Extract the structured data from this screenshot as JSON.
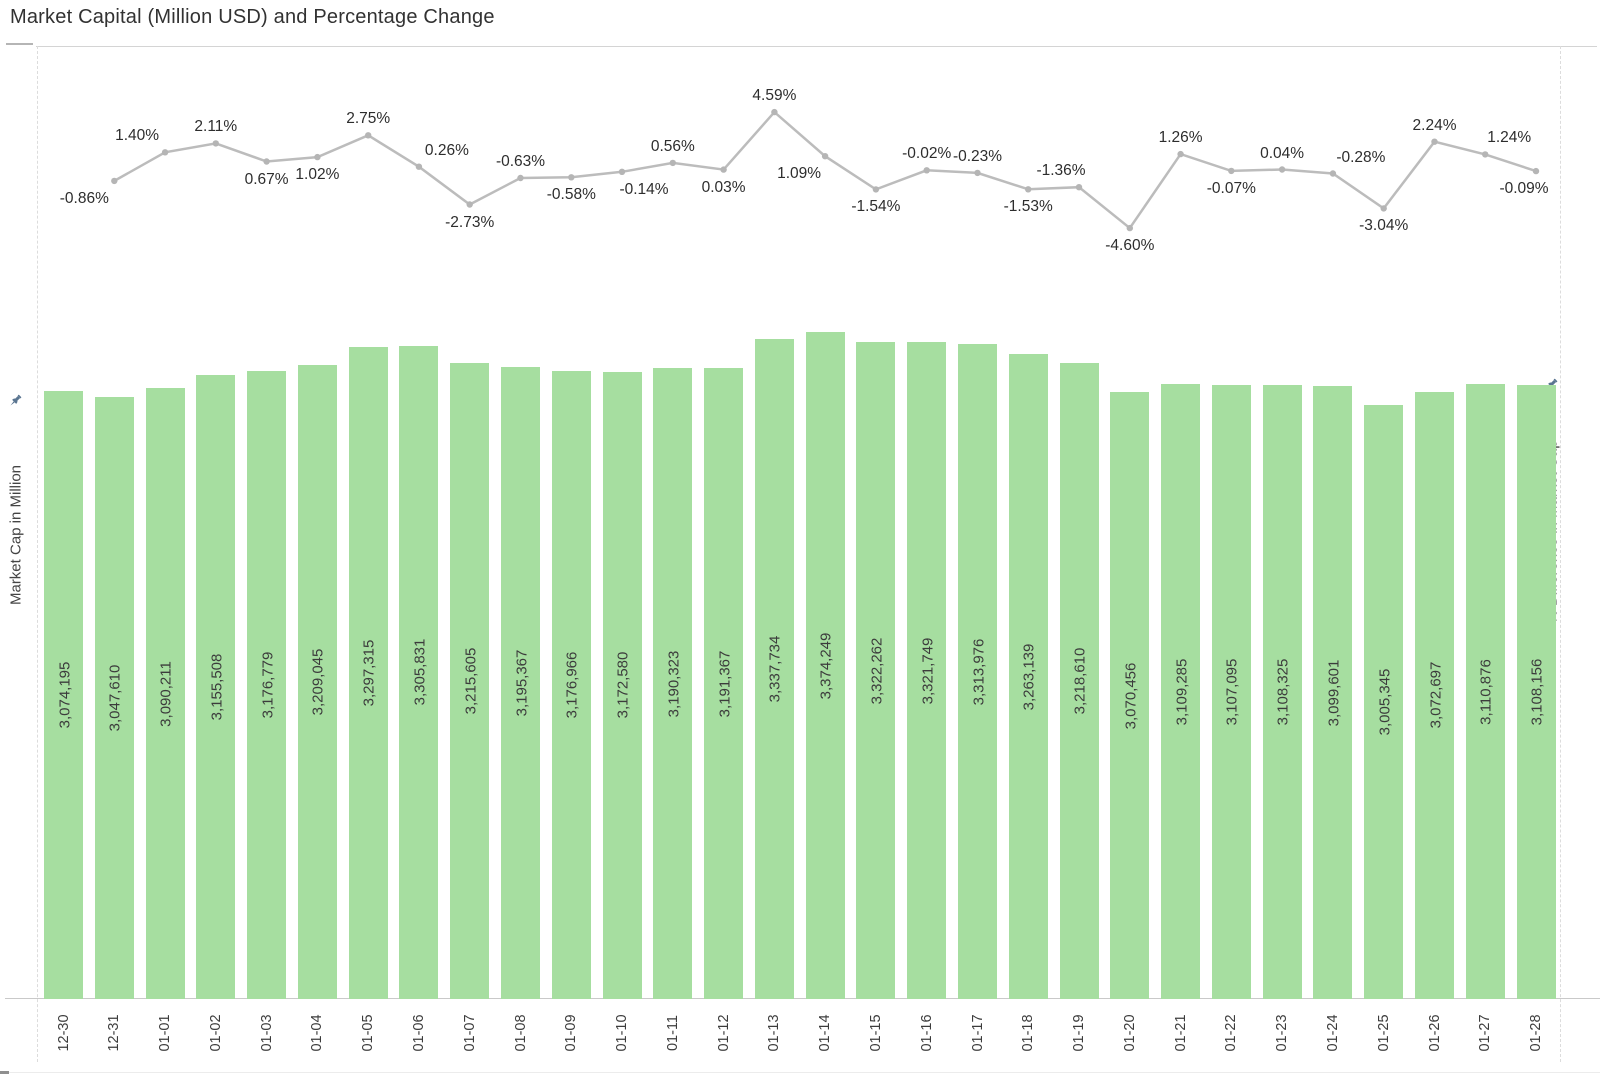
{
  "title": "Market Capital (Million USD) and Percentage Change",
  "axes": {
    "left": {
      "label": "Market Cap in Million",
      "icon": "pushpin-icon"
    },
    "right": {
      "label": "% Difference in Market Cap",
      "icon": "pushpin-icon"
    }
  },
  "colors": {
    "bar_fill": "#a6dea0",
    "line": "#bcbcbc",
    "marker": "#b5b5b5",
    "pin": "#5a7591",
    "label_text": "#3c3c3c",
    "pct_text": "#2d2d2d",
    "axis_line": "#c9c9c9"
  },
  "chart_data": {
    "type": "combo",
    "title": "Market Capital (Million USD) and Percentage Change",
    "grid": "off",
    "legend": "none",
    "categories": [
      "12-30",
      "12-31",
      "01-01",
      "01-02",
      "01-03",
      "01-04",
      "01-05",
      "01-06",
      "01-07",
      "01-08",
      "01-09",
      "01-10",
      "01-11",
      "01-12",
      "01-13",
      "01-14",
      "01-15",
      "01-16",
      "01-17",
      "01-18",
      "01-19",
      "01-20",
      "01-21",
      "01-22",
      "01-23",
      "01-24",
      "01-25",
      "01-26",
      "01-27",
      "01-28"
    ],
    "bar_series": {
      "name": "Market Cap in Million",
      "type": "bar",
      "color": "#a6dea0",
      "axis_range": [
        0,
        3400000
      ],
      "values": [
        3074195,
        3047610,
        3090211,
        3155508,
        3176779,
        3209045,
        3297315,
        3305831,
        3215605,
        3195367,
        3176966,
        3172580,
        3190323,
        3191367,
        3337734,
        3374249,
        3322262,
        3321749,
        3313976,
        3263139,
        3218610,
        3070456,
        3109285,
        3107095,
        3108325,
        3099601,
        3005345,
        3072697,
        3110876,
        3108156
      ],
      "labels": [
        "3,074,195",
        "3,047,610",
        "3,090,211",
        "3,155,508",
        "3,176,779",
        "3,209,045",
        "3,297,315",
        "3,305,831",
        "3,215,605",
        "3,195,367",
        "3,176,966",
        "3,172,580",
        "3,190,323",
        "3,191,367",
        "3,337,734",
        "3,374,249",
        "3,322,262",
        "3,321,749",
        "3,313,976",
        "3,263,139",
        "3,218,610",
        "3,070,456",
        "3,109,285",
        "3,107,095",
        "3,108,325",
        "3,099,601",
        "3,005,345",
        "3,072,697",
        "3,110,876",
        "3,108,156"
      ]
    },
    "line_series": {
      "name": "% Difference in Market Cap",
      "type": "line",
      "color": "#bcbcbc",
      "axis_range": [
        -5.2,
        5.2
      ],
      "starts_at_category": "12-31",
      "values": [
        -0.86,
        1.4,
        2.11,
        0.67,
        1.02,
        2.75,
        0.26,
        -2.73,
        -0.63,
        -0.58,
        -0.14,
        0.56,
        0.03,
        4.59,
        1.09,
        -1.54,
        -0.02,
        -0.23,
        -1.53,
        -1.36,
        -4.6,
        1.26,
        -0.07,
        0.04,
        -0.28,
        -3.04,
        2.24,
        1.24,
        -0.09
      ],
      "labels": [
        "-0.86%",
        "1.40%",
        "2.11%",
        "0.67%",
        "1.02%",
        "2.75%",
        "0.26%",
        "-2.73%",
        "-0.63%",
        "-0.58%",
        "-0.14%",
        "0.56%",
        "0.03%",
        "4.59%",
        "1.09%",
        "-1.54%",
        "-0.02%",
        "-0.23%",
        "-1.53%",
        "-1.36%",
        "-4.60%",
        "1.26%",
        "-0.07%",
        "0.04%",
        "-0.28%",
        "-3.04%",
        "2.24%",
        "1.24%",
        "-0.09%"
      ],
      "label_side": [
        "below",
        "above",
        "above",
        "below",
        "below",
        "above",
        "above",
        "below",
        "above",
        "below",
        "below",
        "above",
        "below",
        "above",
        "below",
        "below",
        "above",
        "above",
        "below",
        "above",
        "below",
        "above",
        "below",
        "above",
        "above",
        "below",
        "above",
        "above",
        "below"
      ],
      "label_dx": [
        -30,
        -28,
        0,
        0,
        0,
        0,
        28,
        0,
        0,
        0,
        22,
        0,
        0,
        0,
        -26,
        0,
        0,
        0,
        0,
        -18,
        0,
        0,
        0,
        0,
        28,
        0,
        0,
        24,
        -12
      ]
    }
  }
}
